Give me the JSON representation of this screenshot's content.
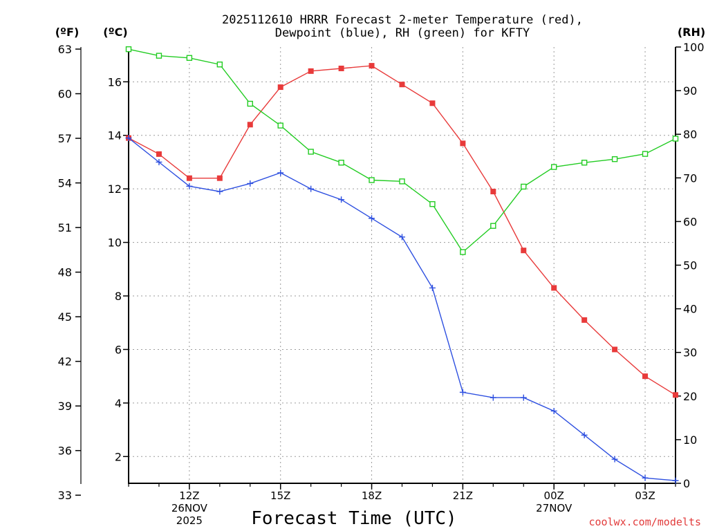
{
  "chart_data": {
    "type": "line",
    "title_line1": "2025112610 HRRR Forecast 2-meter Temperature (red),",
    "title_line2": "Dewpoint (blue), RH (green) for KFTY",
    "xlabel": "Forecast Time (UTC)",
    "credit": "coolwx.com/modelts",
    "units": {
      "fahrenheit": "(ºF)",
      "celsius": "(ºC)",
      "rh": "(RH)"
    },
    "x_hours": [
      10,
      11,
      12,
      13,
      14,
      15,
      16,
      17,
      18,
      19,
      20,
      21,
      22,
      23,
      24,
      25,
      26,
      27,
      28
    ],
    "x_range": [
      10,
      28
    ],
    "x_ticks": [
      {
        "hour": 12,
        "label": "12Z",
        "sub1": "26NOV",
        "sub2": "2025"
      },
      {
        "hour": 15,
        "label": "15Z",
        "sub1": "",
        "sub2": ""
      },
      {
        "hour": 18,
        "label": "18Z",
        "sub1": "",
        "sub2": ""
      },
      {
        "hour": 21,
        "label": "21Z",
        "sub1": "",
        "sub2": ""
      },
      {
        "hour": 24,
        "label": "00Z",
        "sub1": "27NOV",
        "sub2": ""
      },
      {
        "hour": 27,
        "label": "03Z",
        "sub1": "",
        "sub2": ""
      }
    ],
    "celsius_range": [
      1.0,
      17.3
    ],
    "celsius_ticks": [
      "2",
      "4",
      "6",
      "8",
      "10",
      "12",
      "14",
      "16"
    ],
    "fahrenheit_ticks": [
      "33",
      "36",
      "39",
      "42",
      "45",
      "48",
      "51",
      "54",
      "57",
      "60",
      "63"
    ],
    "rh_range": [
      0,
      100
    ],
    "rh_ticks": [
      "0",
      "10",
      "20",
      "30",
      "40",
      "50",
      "60",
      "70",
      "80",
      "90",
      "100"
    ],
    "series": [
      {
        "name": "Temperature",
        "unit": "C",
        "color": "#e83a3a",
        "marker": "filled-square",
        "values": [
          13.9,
          13.3,
          12.4,
          12.4,
          14.4,
          15.8,
          16.4,
          16.5,
          16.6,
          15.9,
          15.2,
          13.7,
          11.9,
          9.7,
          8.3,
          7.1,
          6.0,
          5.0,
          4.3
        ]
      },
      {
        "name": "Dewpoint",
        "unit": "C",
        "color": "#2d4fe0",
        "marker": "plus",
        "values": [
          13.9,
          13.0,
          12.1,
          11.9,
          12.2,
          12.6,
          12.0,
          11.6,
          10.9,
          10.2,
          8.3,
          4.4,
          4.2,
          4.2,
          3.7,
          2.8,
          1.9,
          1.2,
          1.1
        ]
      },
      {
        "name": "RH",
        "unit": "%",
        "color": "#22cc22",
        "marker": "open-square",
        "values": [
          99.5,
          98.0,
          97.5,
          96.0,
          87.0,
          82.0,
          76.0,
          73.5,
          69.5,
          69.2,
          64.0,
          53.0,
          59.0,
          68.0,
          72.5,
          73.5,
          74.3,
          75.5,
          79.0
        ]
      }
    ]
  }
}
